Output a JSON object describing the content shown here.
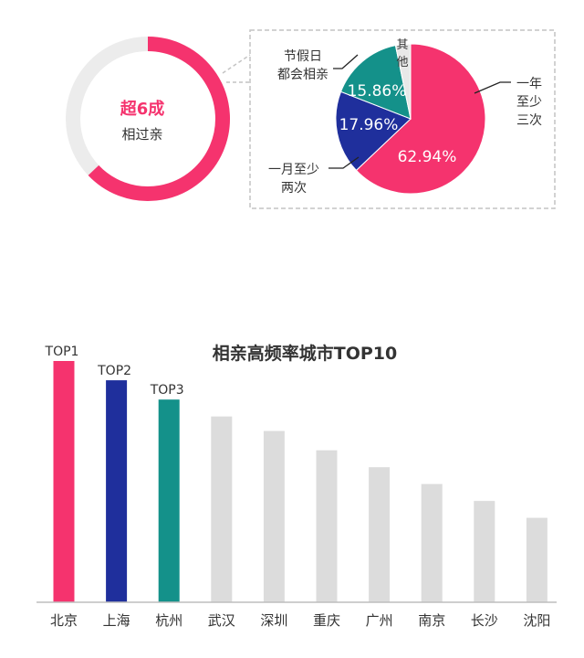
{
  "ring": {
    "headline": "超6成",
    "subline": "相过亲",
    "fraction": 0.6294,
    "accent": "#f5336e",
    "track": "#ececec"
  },
  "pie_labels": {
    "yinian_lines": [
      "一年",
      "至少",
      "三次"
    ],
    "yiyue_lines": [
      "一月至少",
      "两次"
    ],
    "jiejia_lines": [
      "节假日",
      "都会相亲"
    ],
    "qita_lines": [
      "其",
      "他"
    ]
  },
  "chart_data": [
    {
      "type": "pie",
      "title": "",
      "slices": [
        {
          "label": "一年至少三次",
          "value": 62.94,
          "text": "62.94%",
          "color": "#f5336e"
        },
        {
          "label": "一月至少两次",
          "value": 17.96,
          "text": "17.96%",
          "color": "#1f2f9c"
        },
        {
          "label": "节假日都会相亲",
          "value": 15.86,
          "text": "15.86%",
          "color": "#14918a"
        },
        {
          "label": "其他",
          "value": 3.24,
          "text": "",
          "color": "#e8e8e8"
        }
      ]
    },
    {
      "type": "bar",
      "title": "相亲高频率城市TOP10",
      "xlabel": "",
      "ylabel": "",
      "categories": [
        "北京",
        "上海",
        "杭州",
        "武汉",
        "深圳",
        "重庆",
        "广州",
        "南京",
        "长沙",
        "沈阳"
      ],
      "values": [
        100,
        92,
        84,
        77,
        71,
        63,
        56,
        49,
        42,
        35
      ],
      "ylim": [
        0,
        100
      ],
      "grid": false,
      "colors": [
        "#f5336e",
        "#1f2f9c",
        "#14918a",
        "#dcdcdc",
        "#dcdcdc",
        "#dcdcdc",
        "#dcdcdc",
        "#dcdcdc",
        "#dcdcdc",
        "#dcdcdc"
      ],
      "rank_labels": [
        "TOP1",
        "TOP2",
        "TOP3"
      ]
    }
  ]
}
